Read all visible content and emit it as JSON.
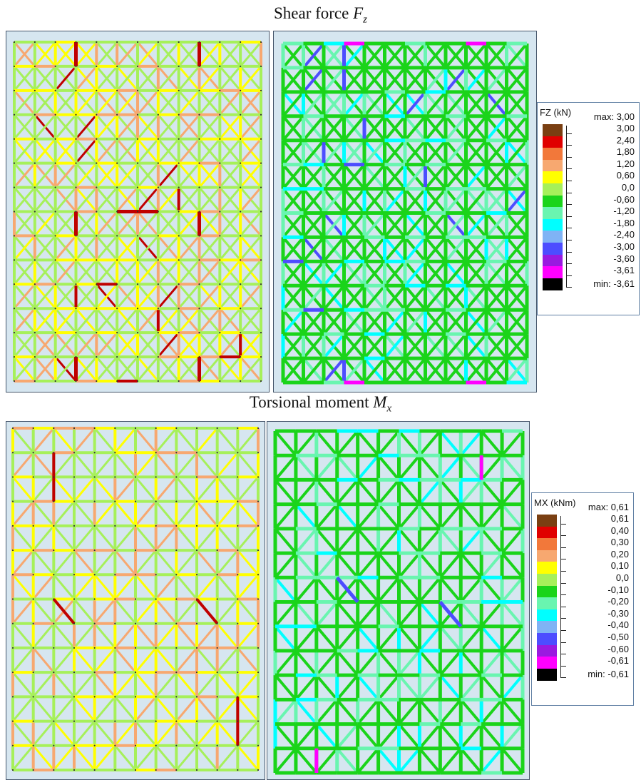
{
  "sections": [
    {
      "title_text": "Shear force ",
      "title_symbol": "F",
      "title_sub": "z",
      "legend": {
        "header": "FZ (kN)",
        "max_label": "max: 3,00",
        "min_label": "min: -3,61",
        "entries": [
          {
            "label": "3,00",
            "color": "#7a3f12"
          },
          {
            "label": "2,40",
            "color": "#e00000"
          },
          {
            "label": "1,80",
            "color": "#f2783a"
          },
          {
            "label": "1,20",
            "color": "#f7a870"
          },
          {
            "label": "0,60",
            "color": "#ffff00"
          },
          {
            "label": "0,0",
            "color": "#a6f05a"
          },
          {
            "label": "-0,60",
            "color": "#1ad41a"
          },
          {
            "label": "-1,20",
            "color": "#69f5b0"
          },
          {
            "label": "-1,80",
            "color": "#00ffff"
          },
          {
            "label": "-2,40",
            "color": "#7fb3f5"
          },
          {
            "label": "-3,00",
            "color": "#4d4dff"
          },
          {
            "label": "-3,60",
            "color": "#9a1ae0"
          },
          {
            "label": "-3,61",
            "color": "#ff00ff"
          },
          {
            "label": "",
            "color": "#000000"
          }
        ]
      }
    },
    {
      "title_text": "Torsional moment ",
      "title_symbol": "M",
      "title_sub": "x",
      "legend": {
        "header": "MX (kNm)",
        "max_label": "max: 0,61",
        "min_label": "min: -0,61",
        "entries": [
          {
            "label": "0,61",
            "color": "#7a3f12"
          },
          {
            "label": "0,40",
            "color": "#e00000"
          },
          {
            "label": "0,30",
            "color": "#f2783a"
          },
          {
            "label": "0,20",
            "color": "#f7a870"
          },
          {
            "label": "0,10",
            "color": "#ffff00"
          },
          {
            "label": "0,0",
            "color": "#a6f05a"
          },
          {
            "label": "-0,10",
            "color": "#1ad41a"
          },
          {
            "label": "-0,20",
            "color": "#69f5b0"
          },
          {
            "label": "-0,30",
            "color": "#00ffff"
          },
          {
            "label": "-0,40",
            "color": "#7fb3f5"
          },
          {
            "label": "-0,50",
            "color": "#4d4dff"
          },
          {
            "label": "-0,60",
            "color": "#9a1ae0"
          },
          {
            "label": "-0,61",
            "color": "#ff00ff"
          },
          {
            "label": "",
            "color": "#000000"
          }
        ]
      }
    }
  ],
  "colors": {
    "panel_bg": "#d6e6f0",
    "panel_border": "#45556a",
    "positive_base": "#a6f05a",
    "positive_yellow": "#ffff00",
    "positive_orange": "#f7a870",
    "positive_red": "#c00000",
    "negative_base": "#1ad41a",
    "negative_light": "#69f5b0",
    "negative_cyan": "#00ffff",
    "negative_blue": "#4d4dff",
    "negative_magenta": "#ff00ff"
  }
}
